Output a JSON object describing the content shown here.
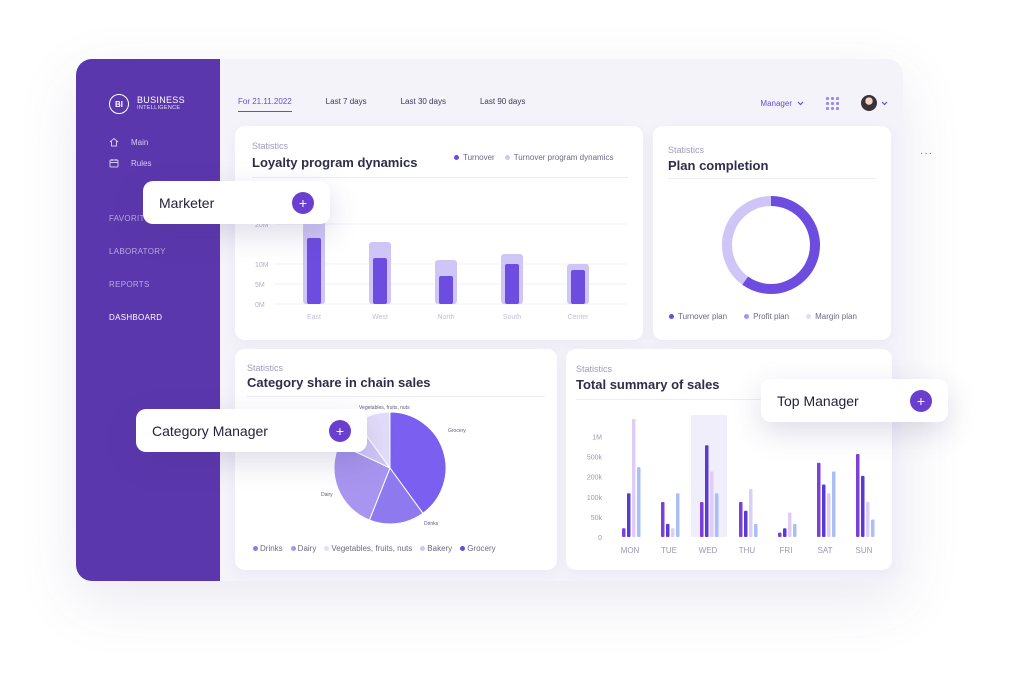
{
  "brand": {
    "badge": "BI",
    "name_line1": "BUSINESS",
    "name_line2": "INTELLIGENCE"
  },
  "sidebar": {
    "items": [
      {
        "label": "Main",
        "icon": "home-icon"
      },
      {
        "label": "Rules",
        "icon": "calendar-icon"
      }
    ],
    "sections": [
      "FAVORITES",
      "LABORATORY",
      "REPORTS",
      "DASHBOARD"
    ],
    "active_section": "DASHBOARD"
  },
  "topbar": {
    "tabs": [
      "For 21.11.2022",
      "Last 7 days",
      "Last 30 days",
      "Last 90 days"
    ],
    "active_tab": "For 21.11.2022",
    "role_select": "Manager"
  },
  "cards": {
    "loyalty": {
      "kicker": "Statistics",
      "title": "Loyalty program dynamics",
      "legend": [
        "Turnover",
        "Turnover program dynamics"
      ]
    },
    "plan": {
      "kicker": "Statistics",
      "title": "Plan completion",
      "legend": [
        "Turnover plan",
        "Profit plan",
        "Margin plan"
      ]
    },
    "category": {
      "kicker": "Statistics",
      "title": "Category share in chain sales",
      "legend": [
        "Drinks",
        "Dairy",
        "Vegetables, fruits, nuts",
        "Bakery",
        "Grocery"
      ]
    },
    "summary": {
      "kicker": "Statistics",
      "title": "Total summary of sales"
    }
  },
  "floating": {
    "marketer": "Marketer",
    "category_manager": "Category Manager",
    "top_manager": "Top Manager",
    "plus_symbol": "+"
  },
  "more_menu": "···",
  "colors": {
    "accent": "#6a3fd0",
    "sidebar": "#5b37ad",
    "bar_dark": "#6c4de0",
    "bar_light": "#cfc6f7"
  },
  "chart_data": [
    {
      "type": "bar",
      "title": "Loyalty program dynamics",
      "categories": [
        "East",
        "West",
        "North",
        "South",
        "Center"
      ],
      "y_ticks": [
        "0M",
        "5M",
        "10M",
        "20M"
      ],
      "series": [
        {
          "name": "Turnover",
          "values": [
            16.5,
            11.5,
            7,
            10,
            8.5
          ]
        },
        {
          "name": "Turnover program dynamics",
          "values": [
            22,
            15.5,
            11,
            12.5,
            10
          ]
        }
      ],
      "ylim": [
        0,
        22
      ]
    },
    {
      "type": "pie",
      "title": "Plan completion",
      "labels": [
        "Turnover plan",
        "Profit plan",
        "Margin plan"
      ],
      "values": [
        60,
        40,
        0
      ]
    },
    {
      "type": "pie",
      "title": "Category share in chain sales",
      "labels": [
        "Drinks",
        "Dairy",
        "Vegetables, fruits, nuts",
        "Bakery",
        "Grocery"
      ],
      "slice_labels": [
        "Drinks",
        "Dairy",
        "Vegetables, fruits, nuts",
        "",
        "Grocery"
      ],
      "values": [
        16,
        26,
        10,
        8,
        40
      ]
    },
    {
      "type": "bar",
      "title": "Total summary of sales",
      "categories": [
        "MON",
        "TUE",
        "WED",
        "THU",
        "FRI",
        "SAT",
        "SUN"
      ],
      "y_ticks": [
        "0",
        "50k",
        "100k",
        "200k",
        "500k",
        "1M"
      ],
      "highlighted_category": "WED",
      "series": [
        {
          "values": [
            1,
            4,
            4,
            4,
            0.5,
            8.5,
            9.5
          ]
        },
        {
          "values": [
            5,
            1.5,
            10.5,
            3,
            1,
            6,
            7
          ]
        },
        {
          "values": [
            13.5,
            1,
            7.5,
            5.5,
            2.8,
            5,
            4
          ]
        },
        {
          "values": [
            8,
            5,
            5,
            1.5,
            1.5,
            7.5,
            2
          ]
        }
      ],
      "ylim": [
        0,
        13.5
      ]
    }
  ]
}
